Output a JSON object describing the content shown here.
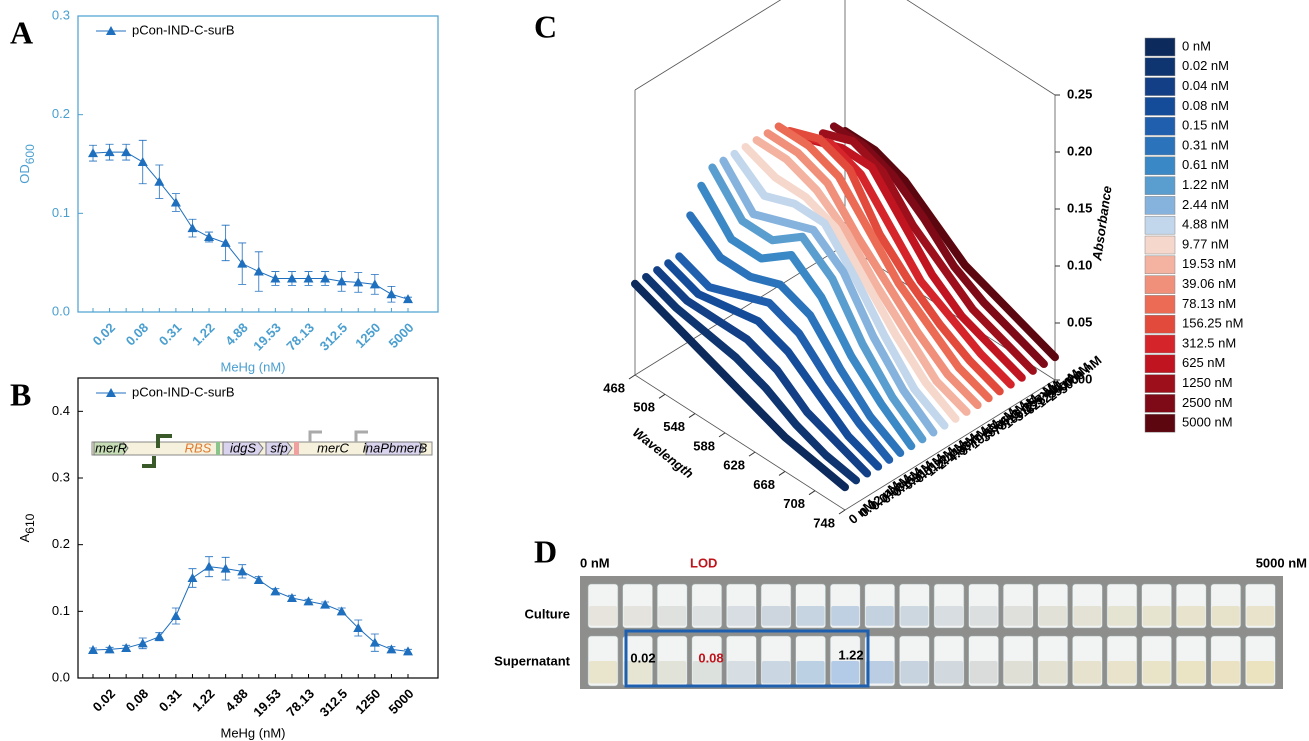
{
  "chart_data": [
    {
      "type": "line",
      "panel_label": "A",
      "x_label": "MeHg (nM)",
      "y_label": {
        "text": "OD",
        "subscript": "600"
      },
      "categories": [
        null,
        "0.02",
        null,
        "0.08",
        null,
        "0.31",
        null,
        "1.22",
        null,
        "4.88",
        null,
        "19.53",
        null,
        "78.13",
        null,
        "312.5",
        null,
        "1250",
        null,
        "5000"
      ],
      "series": [
        {
          "name": "pCon-IND-C-surB",
          "color": "#1f6fbf",
          "values": [
            0.161,
            0.162,
            0.162,
            0.152,
            0.132,
            0.111,
            0.085,
            0.076,
            0.07,
            0.049,
            0.041,
            0.034,
            0.034,
            0.034,
            0.034,
            0.031,
            0.03,
            0.028,
            0.018,
            0.013
          ],
          "errors": [
            0.008,
            0.008,
            0.008,
            0.022,
            0.017,
            0.009,
            0.009,
            0.005,
            0.018,
            0.021,
            0.02,
            0.007,
            0.007,
            0.007,
            0.007,
            0.01,
            0.01,
            0.01,
            0.008,
            0.002
          ]
        }
      ],
      "ylim": [
        0,
        0.3
      ],
      "yticks": [
        {
          "value": 0,
          "label": "0.0"
        },
        0.1,
        0.2,
        0.3
      ],
      "axis_color": "#4a9fd0",
      "legend": "upper left"
    },
    {
      "type": "line",
      "panel_label": "B",
      "x_label": "MeHg (nM)",
      "y_label": {
        "text": "A",
        "subscript": "610"
      },
      "categories": [
        null,
        "0.02",
        null,
        "0.08",
        null,
        "0.31",
        null,
        "1.22",
        null,
        "4.88",
        null,
        "19.53",
        null,
        "78.13",
        null,
        "312.5",
        null,
        "1250",
        null,
        "5000"
      ],
      "series": [
        {
          "name": "pCon-IND-C-surB",
          "color": "#1f6fbf",
          "values": [
            0.042,
            0.043,
            0.045,
            0.052,
            0.062,
            0.093,
            0.15,
            0.167,
            0.164,
            0.16,
            0.147,
            0.13,
            0.12,
            0.115,
            0.11,
            0.1,
            0.075,
            0.053,
            0.043,
            0.04
          ],
          "errors": [
            0.003,
            0.003,
            0.004,
            0.008,
            0.006,
            0.012,
            0.014,
            0.015,
            0.017,
            0.01,
            0.005,
            0.004,
            0.004,
            0.003,
            0.004,
            0.005,
            0.012,
            0.013,
            0.004,
            0.003
          ]
        }
      ],
      "ylim": [
        0,
        0.45
      ],
      "yticks": [
        {
          "value": 0,
          "label": "0.0"
        },
        0.1,
        0.2,
        0.3,
        0.4
      ],
      "axis_color": "#000000",
      "legend": "upper left",
      "annotations": [
        "merR",
        "RBS",
        "idgS",
        "sfp",
        "merC",
        "inaPbmerB"
      ]
    },
    {
      "type": "line3d",
      "panel_label": "C",
      "x_label": "Wavelength",
      "z_label": "Absorbance",
      "x": [
        468,
        508,
        548,
        588,
        628,
        668,
        708,
        748
      ],
      "xlim": [
        468,
        748
      ],
      "xticks": [
        468,
        508,
        548,
        588,
        628,
        668,
        708,
        748
      ],
      "zlim": [
        0,
        0.25
      ],
      "zticks": [
        {
          "value": 0,
          "label": "0.00"
        },
        0.05,
        {
          "value": 0.1,
          "label": "0.10"
        },
        0.15,
        {
          "value": 0.2,
          "label": "0.20"
        },
        0.25
      ],
      "legend": "right",
      "series": [
        {
          "name": "0 nM",
          "color": "#0d2a5c",
          "values": [
            0.08,
            0.07,
            0.06,
            0.05,
            0.04,
            0.03,
            0.025,
            0.02
          ]
        },
        {
          "name": "0.02 nM",
          "color": "#0f3570",
          "values": [
            0.08,
            0.07,
            0.065,
            0.06,
            0.05,
            0.035,
            0.025,
            0.02
          ]
        },
        {
          "name": "0.04 nM",
          "color": "#123f85",
          "values": [
            0.08,
            0.07,
            0.07,
            0.07,
            0.06,
            0.04,
            0.03,
            0.02
          ]
        },
        {
          "name": "0.08 nM",
          "color": "#154c9a",
          "values": [
            0.08,
            0.07,
            0.075,
            0.08,
            0.07,
            0.05,
            0.03,
            0.02
          ]
        },
        {
          "name": "0.15 nM",
          "color": "#1f5fae",
          "values": [
            0.08,
            0.07,
            0.08,
            0.09,
            0.08,
            0.055,
            0.035,
            0.02
          ]
        },
        {
          "name": "0.31 nM",
          "color": "#2b74bb",
          "values": [
            0.11,
            0.09,
            0.09,
            0.1,
            0.09,
            0.06,
            0.035,
            0.02
          ]
        },
        {
          "name": "0.61 nM",
          "color": "#3a89c6",
          "values": [
            0.13,
            0.1,
            0.1,
            0.12,
            0.1,
            0.065,
            0.04,
            0.02
          ]
        },
        {
          "name": "1.22 nM",
          "color": "#5a9ed0",
          "values": [
            0.14,
            0.11,
            0.11,
            0.13,
            0.11,
            0.07,
            0.04,
            0.02
          ]
        },
        {
          "name": "2.44 nM",
          "color": "#86b3dd",
          "values": [
            0.14,
            0.11,
            0.12,
            0.13,
            0.11,
            0.07,
            0.04,
            0.02
          ]
        },
        {
          "name": "4.88 nM",
          "color": "#c2d6ec",
          "values": [
            0.14,
            0.12,
            0.13,
            0.13,
            0.1,
            0.065,
            0.035,
            0.02
          ]
        },
        {
          "name": "9.77 nM",
          "color": "#f6d7cc",
          "values": [
            0.14,
            0.13,
            0.13,
            0.12,
            0.09,
            0.06,
            0.035,
            0.02
          ]
        },
        {
          "name": "19.53 nM",
          "color": "#f4b3a0",
          "values": [
            0.14,
            0.14,
            0.13,
            0.11,
            0.08,
            0.055,
            0.03,
            0.02
          ]
        },
        {
          "name": "39.06 nM",
          "color": "#f0907a",
          "values": [
            0.14,
            0.14,
            0.13,
            0.1,
            0.075,
            0.05,
            0.03,
            0.02
          ]
        },
        {
          "name": "78.13 nM",
          "color": "#eb6b55",
          "values": [
            0.14,
            0.14,
            0.13,
            0.1,
            0.07,
            0.05,
            0.03,
            0.02
          ]
        },
        {
          "name": "156.25 nM",
          "color": "#e24a3c",
          "values": [
            0.13,
            0.14,
            0.13,
            0.09,
            0.065,
            0.045,
            0.03,
            0.02
          ]
        },
        {
          "name": "312.5 nM",
          "color": "#d6252a",
          "values": [
            0.12,
            0.13,
            0.12,
            0.09,
            0.06,
            0.045,
            0.03,
            0.02
          ]
        },
        {
          "name": "625 nM",
          "color": "#c01520",
          "values": [
            0.11,
            0.12,
            0.12,
            0.09,
            0.06,
            0.04,
            0.03,
            0.02
          ]
        },
        {
          "name": "1250 nM",
          "color": "#9e0f1c",
          "values": [
            0.11,
            0.12,
            0.11,
            0.08,
            0.06,
            0.04,
            0.03,
            0.02
          ]
        },
        {
          "name": "2500 nM",
          "color": "#7d0a16",
          "values": [
            0.11,
            0.11,
            0.1,
            0.08,
            0.055,
            0.04,
            0.03,
            0.02
          ]
        },
        {
          "name": "5000 nM",
          "color": "#5c0710",
          "values": [
            0.1,
            0.1,
            0.09,
            0.07,
            0.05,
            0.04,
            0.03,
            0.02
          ]
        }
      ]
    }
  ],
  "photo": {
    "panel_label": "D",
    "left_label": "0 nM",
    "lod_label": "LOD",
    "right_label": "5000 nM",
    "rows": [
      "Culture",
      "Supernatant"
    ],
    "box_labels": [
      "0.02",
      "0.08",
      "1.22"
    ]
  }
}
